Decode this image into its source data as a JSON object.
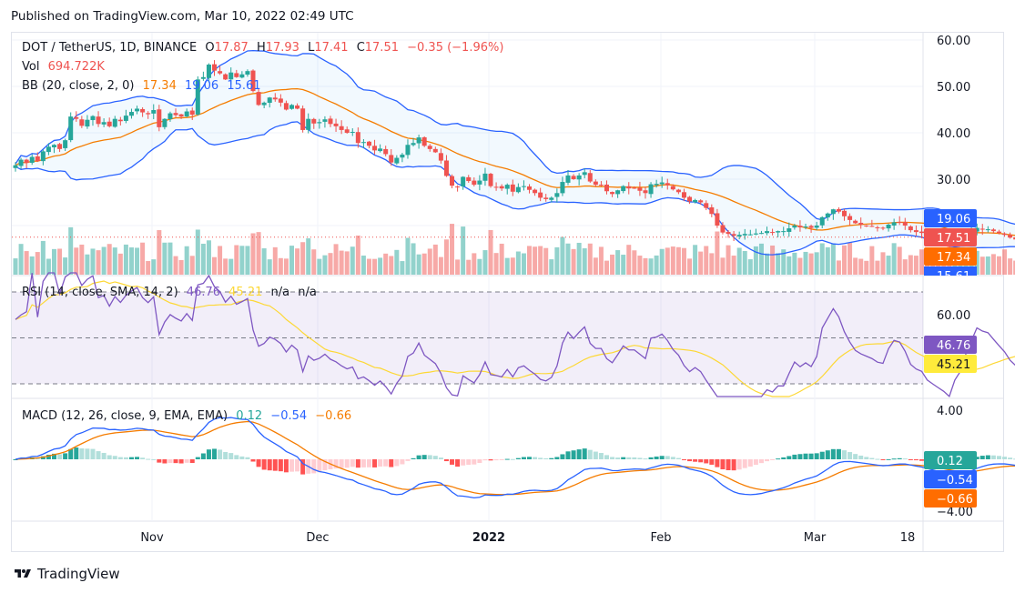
{
  "header": {
    "published": "Published on TradingView.com, Mar 10, 2022 02:49 UTC"
  },
  "legend": {
    "symbol": "DOT / TetherUS, 1D, BINANCE",
    "open_label": "O",
    "open": "17.87",
    "high_label": "H",
    "high": "17.93",
    "low_label": "L",
    "low": "17.41",
    "close_label": "C",
    "close": "17.51",
    "change": "−0.35 (−1.96%)",
    "vol_label": "Vol",
    "vol": "694.722K",
    "bb_label": "BB (20, close, 2, 0)",
    "bb_basis": "17.34",
    "bb_upper": "19.06",
    "bb_lower": "15.61",
    "rsi_label": "RSI (14, close, SMA, 14, 2)",
    "rsi": "46.76",
    "rsi_ma": "45.21",
    "rsi_na1": "n/a",
    "rsi_na2": "n/a",
    "macd_label": "MACD (12, 26, close, 9, EMA, EMA)",
    "macd_hist": "0.12",
    "macd": "−0.54",
    "macd_signal": "−0.66"
  },
  "price_axis": {
    "ticks": [
      "60.00",
      "50.00",
      "40.00",
      "30.00"
    ],
    "badges": {
      "bb_upper": "19.06",
      "close": "17.51",
      "bb_basis": "17.34",
      "bb_lower": "15.61"
    }
  },
  "rsi_axis": {
    "ticks": [
      "60.00"
    ],
    "badges": {
      "rsi": "46.76",
      "rsi_ma": "45.21"
    }
  },
  "macd_axis": {
    "ticks": [
      "4.00",
      "−4.00"
    ],
    "badges": {
      "hist": "0.12",
      "macd": "−0.54",
      "signal": "−0.66"
    }
  },
  "time_axis": {
    "labels": [
      "Nov",
      "Dec",
      "2022",
      "Feb",
      "Mar",
      "18"
    ]
  },
  "footer": {
    "brand": "TradingView"
  },
  "colors": {
    "up": "#26a69a",
    "down": "#ef5350",
    "bb_band": "#2962ff",
    "bb_basis": "#f57c00",
    "rsi": "#7e57c2",
    "rsi_ma": "#fdd835",
    "macd": "#2962ff",
    "signal": "#f57c00"
  },
  "chart_data": {
    "type": "candlestick",
    "title": "DOT / TetherUS, 1D, BINANCE",
    "start_date": "2021-10-08",
    "interval": "1D",
    "ylim": [
      12,
      63
    ],
    "close": [
      33.0,
      34.2,
      33.5,
      34.8,
      33.9,
      36.0,
      37.0,
      37.4,
      36.5,
      38.4,
      43.5,
      43.0,
      41.5,
      42.8,
      43.6,
      41.9,
      42.3,
      41.4,
      43.0,
      42.5,
      43.7,
      44.5,
      45.2,
      44.4,
      44.0,
      44.9,
      41.2,
      43.0,
      44.2,
      43.8,
      43.5,
      44.6,
      43.9,
      51.5,
      52.0,
      54.7,
      53.4,
      52.8,
      51.5,
      53.0,
      52.0,
      52.6,
      53.3,
      49.0,
      46.0,
      46.5,
      47.6,
      47.2,
      46.5,
      45.0,
      46.0,
      45.2,
      40.6,
      43.0,
      42.0,
      42.3,
      42.9,
      41.9,
      41.4,
      40.6,
      40.0,
      40.2,
      37.8,
      38.0,
      37.2,
      36.2,
      36.6,
      35.4,
      33.6,
      34.6,
      35.3,
      37.4,
      37.8,
      39.0,
      37.2,
      36.5,
      35.8,
      34.0,
      30.7,
      28.6,
      28.3,
      30.5,
      29.6,
      28.8,
      29.7,
      31.2,
      28.5,
      28.3,
      28.0,
      28.8,
      27.3,
      28.3,
      28.5,
      27.7,
      27.0,
      26.0,
      25.7,
      26.0,
      27.0,
      29.4,
      30.8,
      30.0,
      30.8,
      31.5,
      29.5,
      28.8,
      28.8,
      27.4,
      26.8,
      27.6,
      28.5,
      28.0,
      28.0,
      27.5,
      27.0,
      28.9,
      29.0,
      29.3,
      28.7,
      27.8,
      27.2,
      26.0,
      25.2,
      25.5,
      25.0,
      23.8,
      22.5,
      20.0,
      18.5,
      18.2,
      17.8,
      18.0,
      18.2,
      18.1,
      18.3,
      18.4,
      18.8,
      18.5,
      18.8,
      18.8,
      19.4,
      20.0,
      19.6,
      19.8,
      19.5,
      20.0,
      21.8,
      22.6,
      23.5,
      23.0,
      22.0
    ],
    "values_note": "Approximate daily closes read from price scale; subsequent tail extends to last close 17.51",
    "tail_close": [
      21.2,
      20.5,
      20.2,
      20.0,
      19.8,
      19.5,
      19.4,
      20.2,
      20.7,
      20.6,
      20.0,
      19.0,
      18.6,
      18.4,
      17.6,
      17.2,
      16.8,
      16.4,
      15.8,
      16.5,
      16.9,
      17.8,
      18.6,
      19.5,
      19.3,
      19.2,
      18.8,
      18.4,
      18.0,
      17.4,
      17.0,
      17.3,
      17.7,
      17.87,
      17.51
    ],
    "last": {
      "open": 17.87,
      "high": 17.93,
      "low": 17.41,
      "close": 17.51,
      "change": -0.35,
      "change_pct": -1.96,
      "volume": "694.722K"
    },
    "bollinger": {
      "length": 20,
      "mult": 2,
      "basis": 17.34,
      "upper": 19.06,
      "lower": 15.61
    },
    "rsi": {
      "length": 14,
      "value": 46.76,
      "ma": 45.21,
      "levels": [
        70,
        50,
        30
      ],
      "ticks": [
        60
      ]
    },
    "macd": {
      "fast": 12,
      "slow": 26,
      "signal": 9,
      "hist": 0.12,
      "macd": -0.54,
      "signal_value": -0.66,
      "ticks": [
        4,
        -4
      ]
    },
    "x_tick_labels": [
      "Nov",
      "Dec",
      "2022",
      "Feb",
      "Mar",
      "18"
    ]
  }
}
